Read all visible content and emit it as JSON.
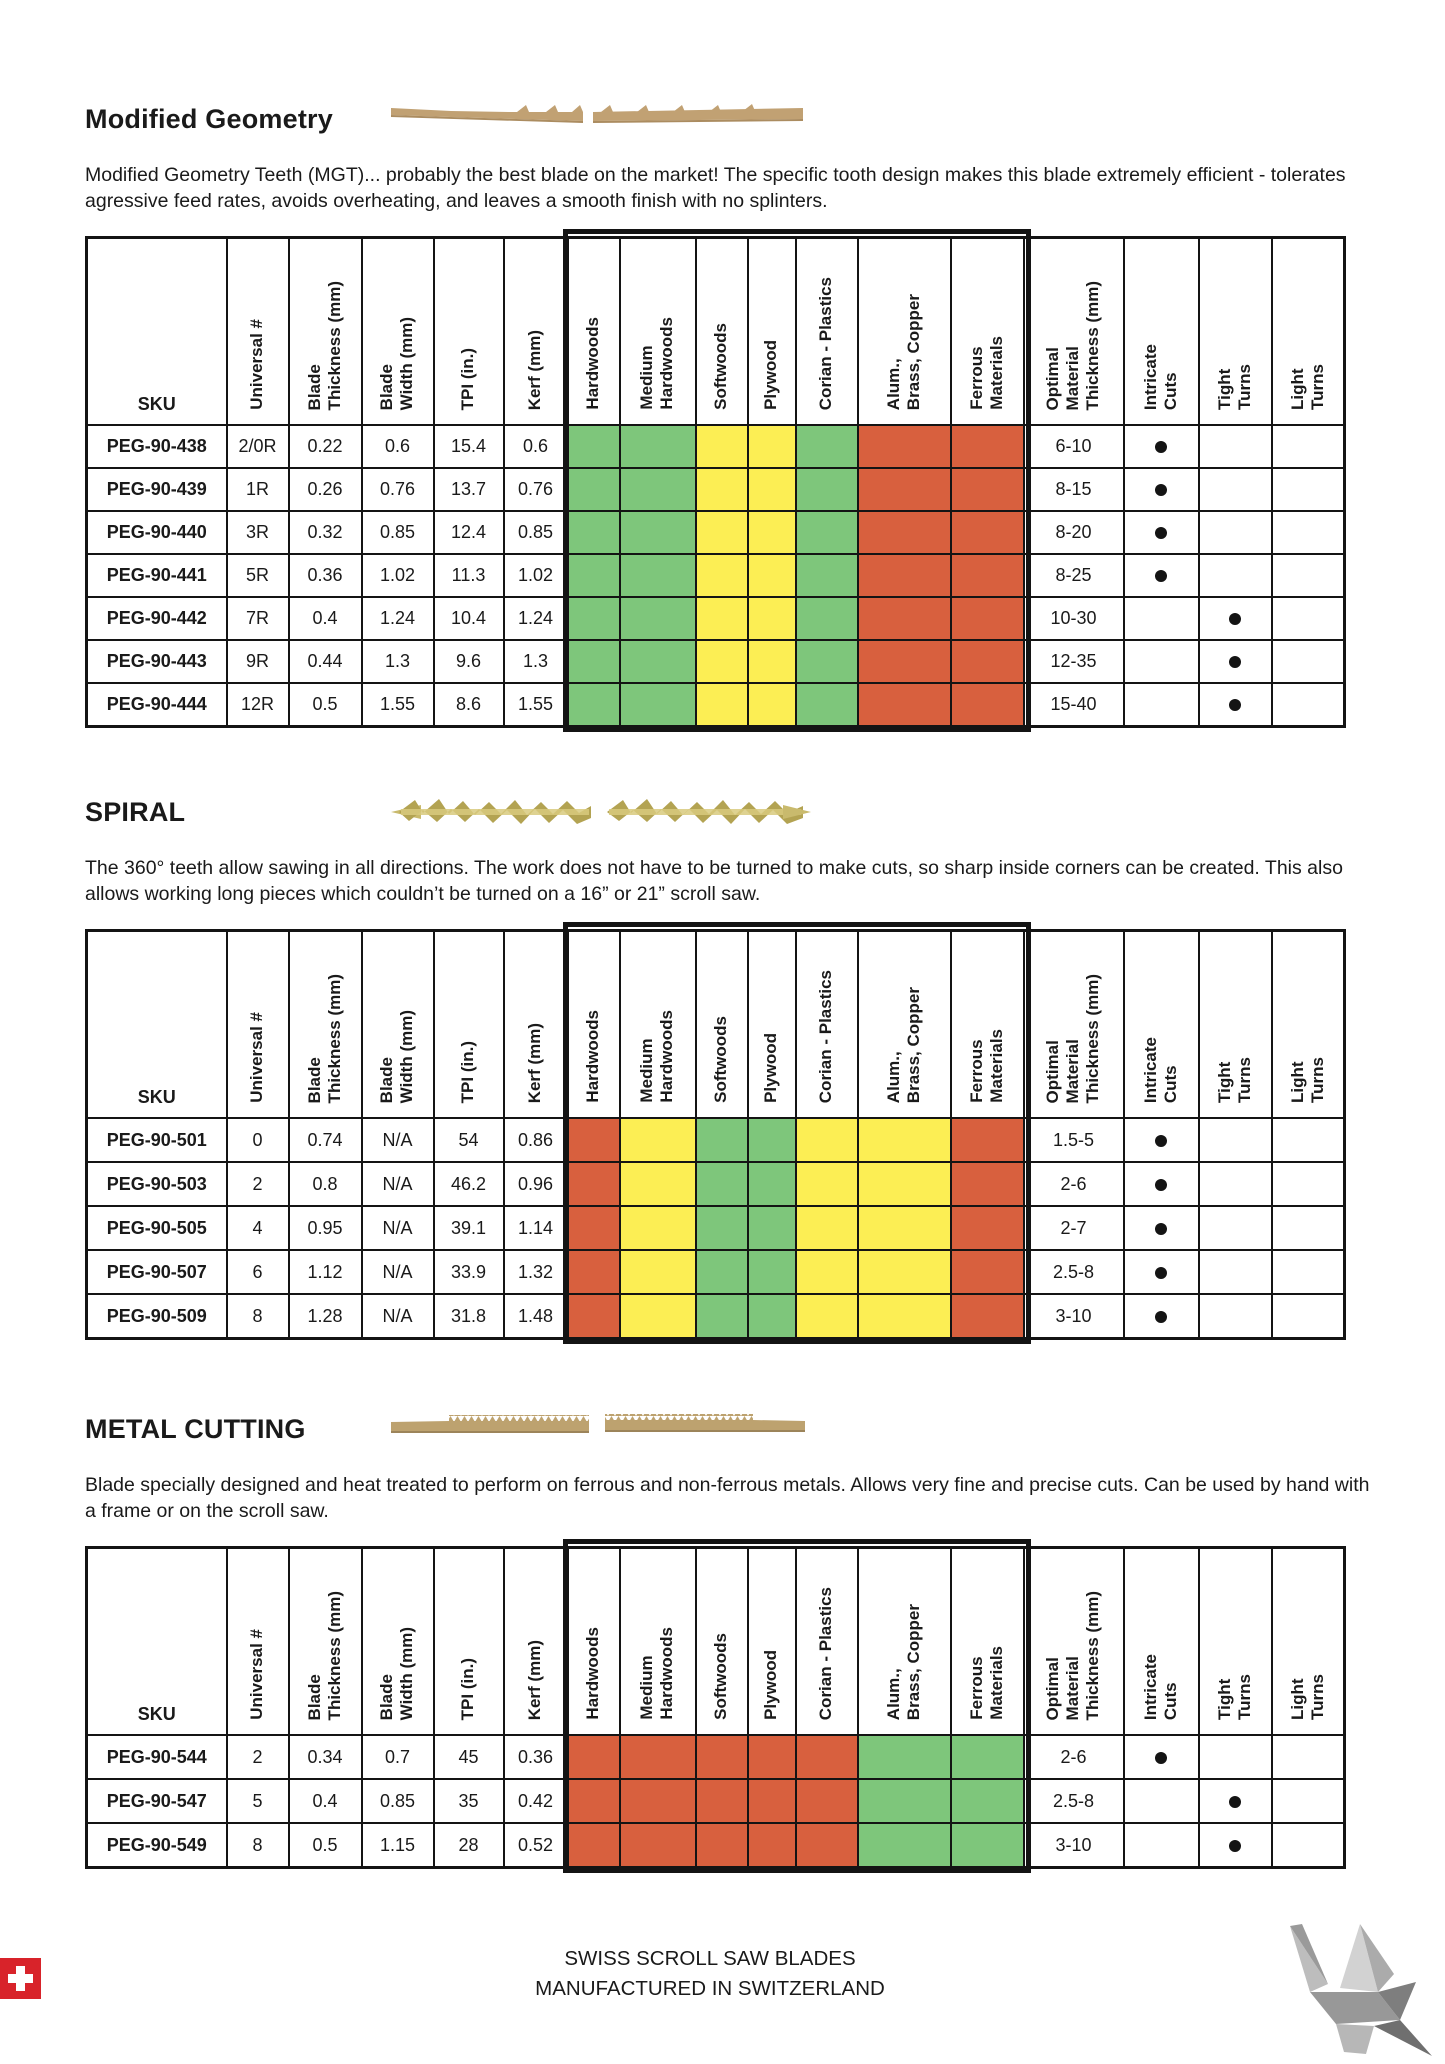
{
  "table_columns": [
    "SKU",
    "Universal #",
    "Blade\nThickness (mm)",
    "Blade\nWidth (mm)",
    "TPI (in.)",
    "Kerf (mm)",
    "Hardwoods",
    "Medium\nHardwoods",
    "Softwoods",
    "Plywood",
    "Corian - Plastics",
    "Alum.,\nBrass, Copper",
    "Ferrous\nMaterials",
    "Optimal\nMaterial\nThickness (mm)",
    "Intricate\nCuts",
    "Tight\nTurns",
    "Light\nTurns"
  ],
  "legend_colors": {
    "suitable": "#7ec67b",
    "moderate": "#fcee54",
    "not_suitable": "#d8603e"
  },
  "sections": [
    {
      "title": "Modified Geometry",
      "blade_image": "modified-geometry-blade",
      "description": "Modified Geometry Teeth (MGT)... probably the best blade on the market! The specific tooth design makes this blade extremely efficient - tolerates agressive feed rates, avoids overheating, and leaves a smooth finish with no splinters.",
      "rows": [
        {
          "sku": "PEG-90-438",
          "universal": "2/0R",
          "blade_thickness_mm": "0.22",
          "blade_width_mm": "0.6",
          "tpi_in": "15.4",
          "kerf_mm": "0.6",
          "materials": [
            "suitable",
            "suitable",
            "moderate",
            "moderate",
            "suitable",
            "not_suitable",
            "not_suitable"
          ],
          "optimal_material_thickness_mm": "6-10",
          "intricate_cuts": true,
          "tight_turns": false,
          "light_turns": false
        },
        {
          "sku": "PEG-90-439",
          "universal": "1R",
          "blade_thickness_mm": "0.26",
          "blade_width_mm": "0.76",
          "tpi_in": "13.7",
          "kerf_mm": "0.76",
          "materials": [
            "suitable",
            "suitable",
            "moderate",
            "moderate",
            "suitable",
            "not_suitable",
            "not_suitable"
          ],
          "optimal_material_thickness_mm": "8-15",
          "intricate_cuts": true,
          "tight_turns": false,
          "light_turns": false
        },
        {
          "sku": "PEG-90-440",
          "universal": "3R",
          "blade_thickness_mm": "0.32",
          "blade_width_mm": "0.85",
          "tpi_in": "12.4",
          "kerf_mm": "0.85",
          "materials": [
            "suitable",
            "suitable",
            "moderate",
            "moderate",
            "suitable",
            "not_suitable",
            "not_suitable"
          ],
          "optimal_material_thickness_mm": "8-20",
          "intricate_cuts": true,
          "tight_turns": false,
          "light_turns": false
        },
        {
          "sku": "PEG-90-441",
          "universal": "5R",
          "blade_thickness_mm": "0.36",
          "blade_width_mm": "1.02",
          "tpi_in": "11.3",
          "kerf_mm": "1.02",
          "materials": [
            "suitable",
            "suitable",
            "moderate",
            "moderate",
            "suitable",
            "not_suitable",
            "not_suitable"
          ],
          "optimal_material_thickness_mm": "8-25",
          "intricate_cuts": true,
          "tight_turns": false,
          "light_turns": false
        },
        {
          "sku": "PEG-90-442",
          "universal": "7R",
          "blade_thickness_mm": "0.4",
          "blade_width_mm": "1.24",
          "tpi_in": "10.4",
          "kerf_mm": "1.24",
          "materials": [
            "suitable",
            "suitable",
            "moderate",
            "moderate",
            "suitable",
            "not_suitable",
            "not_suitable"
          ],
          "optimal_material_thickness_mm": "10-30",
          "intricate_cuts": false,
          "tight_turns": true,
          "light_turns": false
        },
        {
          "sku": "PEG-90-443",
          "universal": "9R",
          "blade_thickness_mm": "0.44",
          "blade_width_mm": "1.3",
          "tpi_in": "9.6",
          "kerf_mm": "1.3",
          "materials": [
            "suitable",
            "suitable",
            "moderate",
            "moderate",
            "suitable",
            "not_suitable",
            "not_suitable"
          ],
          "optimal_material_thickness_mm": "12-35",
          "intricate_cuts": false,
          "tight_turns": true,
          "light_turns": false
        },
        {
          "sku": "PEG-90-444",
          "universal": "12R",
          "blade_thickness_mm": "0.5",
          "blade_width_mm": "1.55",
          "tpi_in": "8.6",
          "kerf_mm": "1.55",
          "materials": [
            "suitable",
            "suitable",
            "moderate",
            "moderate",
            "suitable",
            "not_suitable",
            "not_suitable"
          ],
          "optimal_material_thickness_mm": "15-40",
          "intricate_cuts": false,
          "tight_turns": true,
          "light_turns": false
        }
      ]
    },
    {
      "title": "SPIRAL",
      "blade_image": "spiral-blade",
      "description": "The 360° teeth allow sawing in all directions. The work does not have to be turned to make cuts, so sharp inside corners can be created. This also allows working long pieces which couldn’t be turned on a 16” or 21” scroll saw.",
      "rows": [
        {
          "sku": "PEG-90-501",
          "universal": "0",
          "blade_thickness_mm": "0.74",
          "blade_width_mm": "N/A",
          "tpi_in": "54",
          "kerf_mm": "0.86",
          "materials": [
            "not_suitable",
            "moderate",
            "suitable",
            "suitable",
            "moderate",
            "moderate",
            "not_suitable"
          ],
          "optimal_material_thickness_mm": "1.5-5",
          "intricate_cuts": true,
          "tight_turns": false,
          "light_turns": false
        },
        {
          "sku": "PEG-90-503",
          "universal": "2",
          "blade_thickness_mm": "0.8",
          "blade_width_mm": "N/A",
          "tpi_in": "46.2",
          "kerf_mm": "0.96",
          "materials": [
            "not_suitable",
            "moderate",
            "suitable",
            "suitable",
            "moderate",
            "moderate",
            "not_suitable"
          ],
          "optimal_material_thickness_mm": "2-6",
          "intricate_cuts": true,
          "tight_turns": false,
          "light_turns": false
        },
        {
          "sku": "PEG-90-505",
          "universal": "4",
          "blade_thickness_mm": "0.95",
          "blade_width_mm": "N/A",
          "tpi_in": "39.1",
          "kerf_mm": "1.14",
          "materials": [
            "not_suitable",
            "moderate",
            "suitable",
            "suitable",
            "moderate",
            "moderate",
            "not_suitable"
          ],
          "optimal_material_thickness_mm": "2-7",
          "intricate_cuts": true,
          "tight_turns": false,
          "light_turns": false
        },
        {
          "sku": "PEG-90-507",
          "universal": "6",
          "blade_thickness_mm": "1.12",
          "blade_width_mm": "N/A",
          "tpi_in": "33.9",
          "kerf_mm": "1.32",
          "materials": [
            "not_suitable",
            "moderate",
            "suitable",
            "suitable",
            "moderate",
            "moderate",
            "not_suitable"
          ],
          "optimal_material_thickness_mm": "2.5-8",
          "intricate_cuts": true,
          "tight_turns": false,
          "light_turns": false
        },
        {
          "sku": "PEG-90-509",
          "universal": "8",
          "blade_thickness_mm": "1.28",
          "blade_width_mm": "N/A",
          "tpi_in": "31.8",
          "kerf_mm": "1.48",
          "materials": [
            "not_suitable",
            "moderate",
            "suitable",
            "suitable",
            "moderate",
            "moderate",
            "not_suitable"
          ],
          "optimal_material_thickness_mm": "3-10",
          "intricate_cuts": true,
          "tight_turns": false,
          "light_turns": false
        }
      ]
    },
    {
      "title": "METAL CUTTING",
      "blade_image": "metal-cutting-blade",
      "description": "Blade specially designed and heat treated to perform on ferrous and non-ferrous metals. Allows very fine and precise cuts. Can be used by hand with a frame or on the scroll saw.",
      "rows": [
        {
          "sku": "PEG-90-544",
          "universal": "2",
          "blade_thickness_mm": "0.34",
          "blade_width_mm": "0.7",
          "tpi_in": "45",
          "kerf_mm": "0.36",
          "materials": [
            "not_suitable",
            "not_suitable",
            "not_suitable",
            "not_suitable",
            "not_suitable",
            "suitable",
            "suitable"
          ],
          "optimal_material_thickness_mm": "2-6",
          "intricate_cuts": true,
          "tight_turns": false,
          "light_turns": false
        },
        {
          "sku": "PEG-90-547",
          "universal": "5",
          "blade_thickness_mm": "0.4",
          "blade_width_mm": "0.85",
          "tpi_in": "35",
          "kerf_mm": "0.42",
          "materials": [
            "not_suitable",
            "not_suitable",
            "not_suitable",
            "not_suitable",
            "not_suitable",
            "suitable",
            "suitable"
          ],
          "optimal_material_thickness_mm": "2.5-8",
          "intricate_cuts": false,
          "tight_turns": true,
          "light_turns": false
        },
        {
          "sku": "PEG-90-549",
          "universal": "8",
          "blade_thickness_mm": "0.5",
          "blade_width_mm": "1.15",
          "tpi_in": "28",
          "kerf_mm": "0.52",
          "materials": [
            "not_suitable",
            "not_suitable",
            "not_suitable",
            "not_suitable",
            "not_suitable",
            "suitable",
            "suitable"
          ],
          "optimal_material_thickness_mm": "3-10",
          "intricate_cuts": false,
          "tight_turns": true,
          "light_turns": false
        }
      ]
    }
  ],
  "footer": {
    "line1": "SWISS SCROLL SAW BLADES",
    "line2": "MANUFACTURED IN SWITZERLAND"
  }
}
